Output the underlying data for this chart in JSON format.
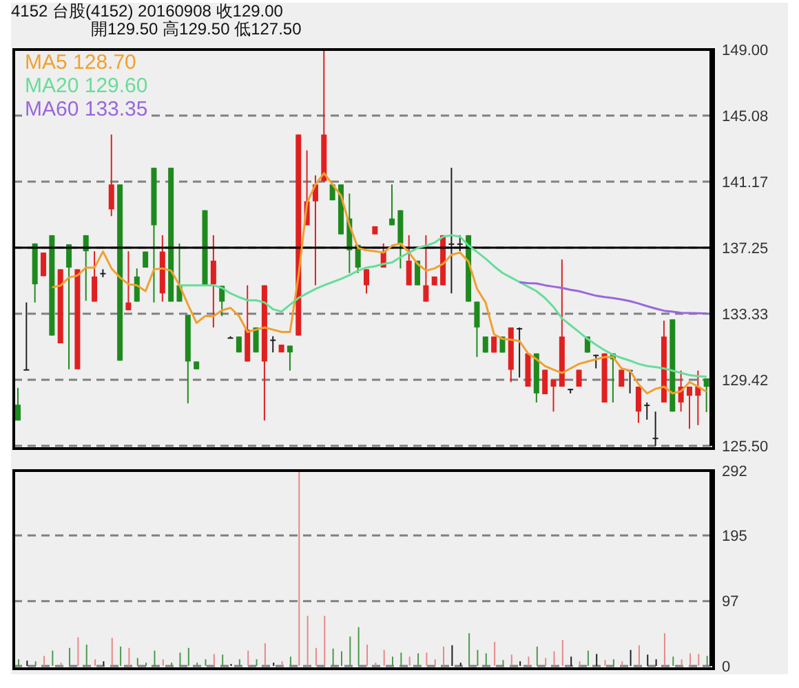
{
  "chart_data": [
    {
      "type": "candlestick",
      "title": "4152 台股(4152) 20160908 收129.00",
      "subtitle": "開129.50 高129.50 低127.50",
      "categories": [
        null,
        null,
        null,
        null,
        null,
        null,
        null,
        null,
        null,
        null,
        null,
        null,
        null,
        null,
        null,
        null,
        null,
        null,
        null,
        null,
        null,
        null,
        null,
        null,
        null,
        null,
        null,
        null,
        null,
        null,
        null,
        null,
        null,
        null,
        null,
        null,
        null,
        null,
        null,
        null,
        null,
        null,
        null,
        null,
        null,
        null,
        null,
        null,
        null,
        null,
        null,
        null,
        null,
        null,
        null,
        null,
        null,
        null,
        null,
        null,
        null,
        null,
        null,
        null,
        null,
        null,
        null,
        null,
        null,
        null,
        null,
        null,
        null,
        null,
        null,
        null,
        null,
        null,
        null,
        null,
        null,
        null
      ],
      "ohlc": [
        [
          127.94,
          128.94,
          127.0,
          127.0
        ],
        [
          130.04,
          134.0,
          130.0,
          130.04
        ],
        [
          137.5,
          137.5,
          134.0,
          135.08
        ],
        [
          135.56,
          136.96,
          135.56,
          136.96
        ],
        [
          137.99,
          137.99,
          132.04,
          132.04
        ],
        [
          131.58,
          135.97,
          131.58,
          135.97
        ],
        [
          137.45,
          137.45,
          130.04,
          136.07
        ],
        [
          130.04,
          135.97,
          130.04,
          135.97
        ],
        [
          137.99,
          137.99,
          134.1,
          137.04
        ],
        [
          134.05,
          137.04,
          134.05,
          135.54
        ],
        [
          135.75,
          135.97,
          135.5,
          135.75
        ],
        [
          139.52,
          143.96,
          139.12,
          141.0
        ],
        [
          141.0,
          141.0,
          130.55,
          130.55
        ],
        [
          133.54,
          137.04,
          133.54,
          134.0
        ],
        [
          135.54,
          136.02,
          134.05,
          134.05
        ],
        [
          137.02,
          137.02,
          136.07,
          136.07
        ],
        [
          141.99,
          141.99,
          134.0,
          138.58
        ],
        [
          134.54,
          137.99,
          134.05,
          137.02
        ],
        [
          141.99,
          141.99,
          134.05,
          134.05
        ],
        [
          135.02,
          137.5,
          134.05,
          134.05
        ],
        [
          133.27,
          133.27,
          128.02,
          130.5
        ],
        [
          130.5,
          130.5,
          130.04,
          130.04
        ],
        [
          139.47,
          139.47,
          135.02,
          135.02
        ],
        [
          135.08,
          137.99,
          132.52,
          136.48
        ],
        [
          134.99,
          134.99,
          133.19,
          134.05
        ],
        [
          131.93,
          132.0,
          131.9,
          131.93
        ],
        [
          131.98,
          131.98,
          131.04,
          131.04
        ],
        [
          130.5,
          135.02,
          130.5,
          132.39
        ],
        [
          132.52,
          132.52,
          131.04,
          131.04
        ],
        [
          130.5,
          135.02,
          127.0,
          135.02
        ],
        [
          131.8,
          132.0,
          131.04,
          131.8
        ],
        [
          131.04,
          131.5,
          131.04,
          131.5
        ],
        [
          131.44,
          131.44,
          129.96,
          131.04
        ],
        [
          132.04,
          143.96,
          132.04,
          143.96
        ],
        [
          138.58,
          143.02,
          138.58,
          140.0
        ],
        [
          140.0,
          141.54,
          135.02,
          141.0
        ],
        [
          141.19,
          149.0,
          141.19,
          143.96
        ],
        [
          141.0,
          141.0,
          140.06,
          140.06
        ],
        [
          141.0,
          141.0,
          138.04,
          138.04
        ],
        [
          138.98,
          140.46,
          135.75,
          137.1
        ],
        [
          137.42,
          137.42,
          135.75,
          136.07
        ],
        [
          135.02,
          135.97,
          134.54,
          135.97
        ],
        [
          138.04,
          138.52,
          138.04,
          138.52
        ],
        [
          136.07,
          137.5,
          136.07,
          137.02
        ],
        [
          138.98,
          141.0,
          138.58,
          138.58
        ],
        [
          139.47,
          139.47,
          136.02,
          137.5
        ],
        [
          135.02,
          137.99,
          135.02,
          136.48
        ],
        [
          136.48,
          136.48,
          135.02,
          135.02
        ],
        [
          134.05,
          137.99,
          134.05,
          135.02
        ],
        [
          135.02,
          135.54,
          135.02,
          135.54
        ],
        [
          135.02,
          137.99,
          135.02,
          137.99
        ],
        [
          137.5,
          141.99,
          134.54,
          137.5
        ],
        [
          137.5,
          137.99,
          137.04,
          137.5
        ],
        [
          137.99,
          137.99,
          134.05,
          134.05
        ],
        [
          134.05,
          134.05,
          130.77,
          132.52
        ],
        [
          131.98,
          131.98,
          131.03,
          131.03
        ],
        [
          131.03,
          131.98,
          131.03,
          131.98
        ],
        [
          131.98,
          131.98,
          131.03,
          131.03
        ],
        [
          130.01,
          132.52,
          129.28,
          132.52
        ],
        [
          132.48,
          132.52,
          129.55,
          132.48
        ],
        [
          129.01,
          130.98,
          129.01,
          130.98
        ],
        [
          130.98,
          130.98,
          128.07,
          128.61
        ],
        [
          128.56,
          130.01,
          128.56,
          130.01
        ],
        [
          129.01,
          129.42,
          127.53,
          129.42
        ],
        [
          129.01,
          136.55,
          129.01,
          131.98
        ],
        [
          128.88,
          128.88,
          128.61,
          128.88
        ],
        [
          129.01,
          130.01,
          129.01,
          130.01
        ],
        [
          131.98,
          131.98,
          131.03,
          131.03
        ],
        [
          130.9,
          130.9,
          130.09,
          130.9
        ],
        [
          128.07,
          130.98,
          128.07,
          130.98
        ],
        [
          130.98,
          130.98,
          128.07,
          130.63
        ],
        [
          129.01,
          130.01,
          129.01,
          130.01
        ],
        [
          130.0,
          130.01,
          128.61,
          130.0
        ],
        [
          127.53,
          129.01,
          126.86,
          129.01
        ],
        [
          127.94,
          128.07,
          127.05,
          127.94
        ],
        [
          125.98,
          127.53,
          125.5,
          125.98
        ],
        [
          128.07,
          132.92,
          128.07,
          131.98
        ],
        [
          133.0,
          133.0,
          127.53,
          127.53
        ],
        [
          128.07,
          129.96,
          127.53,
          129.01
        ],
        [
          128.47,
          129.01,
          126.51,
          129.01
        ],
        [
          128.47,
          129.96,
          126.73,
          129.01
        ],
        [
          129.5,
          129.5,
          127.5,
          129.0
        ]
      ],
      "colors": [
        "#1e8a1e",
        "#202020",
        "#1e8a1e",
        "#e02020",
        "#1e8a1e",
        "#e02020",
        "#1e8a1e",
        "#e02020",
        "#1e8a1e",
        "#e02020",
        "#202020",
        "#e02020",
        "#1e8a1e",
        "#e02020",
        "#1e8a1e",
        "#1e8a1e",
        "#1e8a1e",
        "#e02020",
        "#1e8a1e",
        "#1e8a1e",
        "#1e8a1e",
        "#1e8a1e",
        "#1e8a1e",
        "#e02020",
        "#1e8a1e",
        "#202020",
        "#1e8a1e",
        "#e02020",
        "#1e8a1e",
        "#e02020",
        "#202020",
        "#e02020",
        "#1e8a1e",
        "#e02020",
        "#e02020",
        "#e02020",
        "#e02020",
        "#1e8a1e",
        "#1e8a1e",
        "#1e8a1e",
        "#1e8a1e",
        "#e02020",
        "#e02020",
        "#e02020",
        "#1e8a1e",
        "#1e8a1e",
        "#e02020",
        "#1e8a1e",
        "#e02020",
        "#e02020",
        "#e02020",
        "#202020",
        "#202020",
        "#1e8a1e",
        "#1e8a1e",
        "#1e8a1e",
        "#e02020",
        "#1e8a1e",
        "#e02020",
        "#202020",
        "#e02020",
        "#1e8a1e",
        "#e02020",
        "#e02020",
        "#e02020",
        "#202020",
        "#e02020",
        "#1e8a1e",
        "#202020",
        "#e02020",
        "#1e8a1e",
        "#e02020",
        "#202020",
        "#e02020",
        "#202020",
        "#202020",
        "#e02020",
        "#1e8a1e",
        "#e02020",
        "#e02020",
        "#e02020",
        "#1e8a1e"
      ],
      "series": [
        {
          "name": "MA5 128.70",
          "type": "line",
          "color": "#f0a030",
          "values": [
            null,
            null,
            null,
            null,
            134.9,
            135.0,
            135.48,
            135.6,
            136.07,
            136.07,
            137.02,
            136.02,
            135.48,
            135.08,
            135.02,
            134.67,
            135.97,
            136.02,
            135.89,
            135.02,
            133.87,
            132.79,
            133.19,
            133.19,
            133.54,
            133.68,
            133.19,
            132.25,
            132.39,
            132.52,
            132.39,
            132.25,
            132.25,
            135.62,
            139.92,
            141.0,
            141.67,
            141.0,
            140.33,
            138.58,
            137.23,
            137.1,
            137.04,
            136.96,
            137.37,
            137.5,
            136.96,
            136.29,
            135.89,
            136.02,
            136.29,
            136.83,
            136.96,
            136.42,
            134.81,
            134.0,
            132.11,
            131.84,
            131.79,
            131.71,
            130.98,
            130.63,
            130.23,
            130.01,
            129.82,
            130.09,
            130.36,
            130.5,
            130.63,
            130.76,
            130.76,
            130.09,
            129.96,
            129.15,
            128.61,
            128.88,
            129.01,
            128.61,
            128.74,
            129.28,
            129.01,
            128.7
          ]
        },
        {
          "name": "MA20 129.60",
          "type": "line",
          "color": "#66dd99",
          "values": [
            null,
            null,
            null,
            null,
            null,
            null,
            null,
            null,
            null,
            null,
            null,
            null,
            null,
            null,
            null,
            null,
            null,
            null,
            null,
            135.02,
            135.02,
            135.02,
            135.02,
            135.02,
            134.86,
            134.54,
            134.32,
            134.13,
            134.13,
            134.0,
            133.6,
            133.46,
            133.87,
            134.27,
            134.54,
            134.81,
            135.02,
            135.21,
            135.4,
            135.62,
            135.89,
            136.07,
            136.15,
            136.29,
            136.37,
            136.69,
            136.96,
            137.23,
            137.37,
            137.55,
            137.9,
            137.99,
            137.9,
            137.37,
            137.0,
            136.6,
            136.15,
            135.75,
            135.48,
            135.21,
            134.94,
            134.67,
            134.26,
            133.73,
            133.05,
            132.65,
            132.25,
            131.84,
            131.49,
            131.17,
            130.9,
            130.71,
            130.55,
            130.36,
            130.23,
            130.17,
            130.09,
            129.96,
            129.82,
            129.69,
            129.63,
            129.6
          ]
        },
        {
          "name": "MA60 133.35",
          "type": "line",
          "color": "#9966dd",
          "values": [
            null,
            null,
            null,
            null,
            null,
            null,
            null,
            null,
            null,
            null,
            null,
            null,
            null,
            null,
            null,
            null,
            null,
            null,
            null,
            null,
            null,
            null,
            null,
            null,
            null,
            null,
            null,
            null,
            null,
            null,
            null,
            null,
            null,
            null,
            null,
            null,
            null,
            null,
            null,
            null,
            null,
            null,
            null,
            null,
            null,
            null,
            null,
            null,
            null,
            null,
            null,
            null,
            null,
            null,
            null,
            null,
            null,
            null,
            null,
            135.21,
            135.15,
            135.13,
            135.02,
            134.94,
            134.86,
            134.75,
            134.67,
            134.53,
            134.4,
            134.32,
            134.26,
            134.18,
            134.08,
            133.94,
            133.78,
            133.64,
            133.51,
            133.46,
            133.38,
            133.37,
            133.36,
            133.35
          ]
        }
      ],
      "ylim": [
        125.5,
        149.0
      ],
      "yticks": [
        {
          "value": 125.5,
          "label": "125.50"
        },
        {
          "value": 129.42,
          "label": "129.42"
        },
        {
          "value": 133.33,
          "label": "133.33"
        },
        {
          "value": 137.25,
          "label": "137.25"
        },
        {
          "value": 141.17,
          "label": "141.17"
        },
        {
          "value": 145.08,
          "label": "145.08"
        },
        {
          "value": 149.0,
          "label": "149.00"
        }
      ],
      "ref_lines": [
        {
          "axis": "y",
          "value": 137.25,
          "color": "#000000",
          "line_style": "solid"
        }
      ],
      "grid": "y",
      "legend": "top left",
      "marker": "none",
      "line_style": "solid",
      "tick_labels": "y"
    },
    {
      "type": "bar",
      "categories": [
        null,
        null,
        null,
        null,
        null,
        null,
        null,
        null,
        null,
        null,
        null,
        null,
        null,
        null,
        null,
        null,
        null,
        null,
        null,
        null,
        null,
        null,
        null,
        null,
        null,
        null,
        null,
        null,
        null,
        null,
        null,
        null,
        null,
        null,
        null,
        null,
        null,
        null,
        null,
        null,
        null,
        null,
        null,
        null,
        null,
        null,
        null,
        null,
        null,
        null,
        null,
        null,
        null,
        null,
        null,
        null,
        null,
        null,
        null,
        null,
        null,
        null,
        null,
        null,
        null,
        null,
        null,
        null,
        null,
        null,
        null,
        null,
        null,
        null,
        null,
        null,
        null,
        null,
        null,
        null,
        null,
        null
      ],
      "values": [
        10,
        8,
        7,
        15,
        23,
        5,
        27,
        43,
        32,
        10,
        7,
        42,
        29,
        27,
        12,
        5,
        23,
        10,
        5,
        20,
        27,
        5,
        10,
        18,
        17,
        3,
        10,
        23,
        10,
        34,
        5,
        7,
        14,
        292,
        75,
        27,
        75,
        26,
        22,
        44,
        58,
        32,
        5,
        24,
        14,
        20,
        14,
        19,
        20,
        10,
        29,
        31,
        5,
        49,
        24,
        19,
        36,
        9,
        17,
        7,
        14,
        29,
        12,
        22,
        39,
        14,
        7,
        23,
        18,
        9,
        10,
        7,
        24,
        31,
        17,
        10,
        49,
        14,
        10,
        19,
        18,
        15
      ],
      "colors": [
        "#4a9a4a",
        "#202020",
        "#4a9a4a",
        "#e88888",
        "#4a9a4a",
        "#e88888",
        "#4a9a4a",
        "#e88888",
        "#4a9a4a",
        "#e88888",
        "#202020",
        "#e88888",
        "#4a9a4a",
        "#e88888",
        "#4a9a4a",
        "#4a9a4a",
        "#4a9a4a",
        "#e88888",
        "#4a9a4a",
        "#4a9a4a",
        "#4a9a4a",
        "#4a9a4a",
        "#4a9a4a",
        "#e88888",
        "#4a9a4a",
        "#202020",
        "#4a9a4a",
        "#e88888",
        "#4a9a4a",
        "#e88888",
        "#202020",
        "#e88888",
        "#4a9a4a",
        "#e88888",
        "#e88888",
        "#e88888",
        "#e88888",
        "#4a9a4a",
        "#4a9a4a",
        "#4a9a4a",
        "#4a9a4a",
        "#e88888",
        "#e88888",
        "#e88888",
        "#4a9a4a",
        "#4a9a4a",
        "#e88888",
        "#4a9a4a",
        "#e88888",
        "#e88888",
        "#e88888",
        "#202020",
        "#202020",
        "#4a9a4a",
        "#4a9a4a",
        "#4a9a4a",
        "#e88888",
        "#4a9a4a",
        "#e88888",
        "#202020",
        "#e88888",
        "#4a9a4a",
        "#e88888",
        "#e88888",
        "#e88888",
        "#202020",
        "#e88888",
        "#4a9a4a",
        "#202020",
        "#e88888",
        "#4a9a4a",
        "#e88888",
        "#202020",
        "#e88888",
        "#202020",
        "#202020",
        "#e88888",
        "#4a9a4a",
        "#e88888",
        "#e88888",
        "#e88888",
        "#4a9a4a"
      ],
      "ylim": [
        0,
        292
      ],
      "yticks": [
        0,
        97,
        195,
        292
      ],
      "grid": "y",
      "tick_labels": "y"
    }
  ]
}
